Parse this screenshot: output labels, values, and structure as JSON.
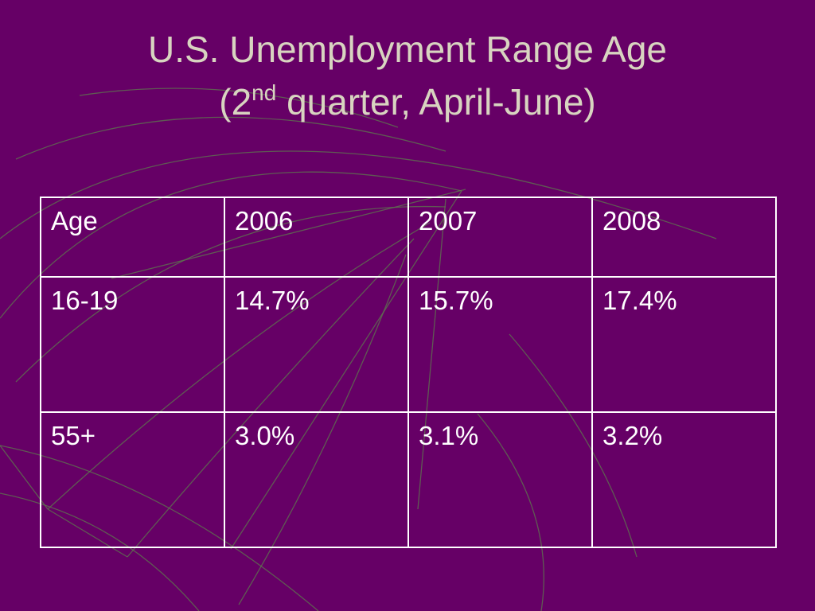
{
  "header": {
    "title_line1": "U.S. Unemployment Range Age",
    "title_line2_start": "(2",
    "title_line2_sup": "nd",
    "title_line2_end": " quarter, April-June)"
  },
  "table": {
    "rows": [
      [
        "Age",
        "2006",
        "2007",
        "2008"
      ],
      [
        "16-19",
        "14.7%",
        "15.7%",
        "17.4%"
      ],
      [
        "55+",
        "3.0%",
        "3.1%",
        "3.2%"
      ]
    ]
  }
}
